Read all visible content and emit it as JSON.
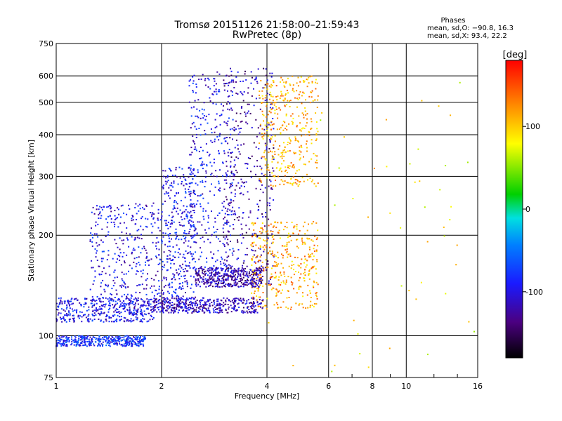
{
  "chart_data": {
    "type": "scatter",
    "title": "Tromsø 20151126 21:58:00–21:59:43",
    "subtitle": "RwPretec (8p)",
    "xlabel": "Frequency [MHz]",
    "ylabel": "Stationary phase Virtual Height [km]",
    "x_scale": "log",
    "y_scale": "log",
    "xlim": [
      1,
      16
    ],
    "ylim": [
      75,
      750
    ],
    "x_ticks": [
      1,
      2,
      4,
      6,
      8,
      10,
      16
    ],
    "y_ticks": [
      75,
      100,
      200,
      300,
      400,
      500,
      600,
      750
    ],
    "grid": true,
    "legend_title": "Phases",
    "legend_lines": [
      "mean, sd,O: −90.8, 16.3",
      "mean, sd,X:  93.4, 22.2"
    ],
    "colorbar": {
      "label": "[deg]",
      "ticks": [
        100,
        0,
        -100
      ],
      "range": [
        -180,
        180
      ]
    },
    "trace_groups": [
      {
        "kind": "band",
        "f": [
          1.0,
          1.8
        ],
        "h": [
          93,
          100
        ],
        "phase": -80
      },
      {
        "kind": "band",
        "f": [
          1.0,
          1.9
        ],
        "h": [
          110,
          130
        ],
        "phase": -95
      },
      {
        "kind": "band",
        "f": [
          1.25,
          2.0
        ],
        "h": [
          115,
          250
        ],
        "phase": -100
      },
      {
        "kind": "band",
        "f": [
          2.0,
          2.5
        ],
        "h": [
          118,
          320
        ],
        "phase": -95
      },
      {
        "kind": "band",
        "f": [
          2.4,
          3.2
        ],
        "h": [
          150,
          620
        ],
        "phase": -95
      },
      {
        "kind": "band",
        "f": [
          3.0,
          4.2
        ],
        "h": [
          140,
          640
        ],
        "phase": -120
      },
      {
        "kind": "band",
        "f": [
          3.8,
          5.6
        ],
        "h": [
          280,
          600
        ],
        "phase": 110
      },
      {
        "kind": "band",
        "f": [
          3.6,
          5.6
        ],
        "h": [
          120,
          220
        ],
        "phase": 115
      },
      {
        "kind": "band",
        "f": [
          1.9,
          3.9
        ],
        "h": [
          117,
          130
        ],
        "phase": -115
      },
      {
        "kind": "band",
        "f": [
          2.5,
          3.9
        ],
        "h": [
          140,
          160
        ],
        "phase": -120
      },
      {
        "kind": "sparse",
        "f": [
          4.0,
          16.0
        ],
        "h": [
          78,
          620
        ],
        "phase": 90
      }
    ]
  }
}
